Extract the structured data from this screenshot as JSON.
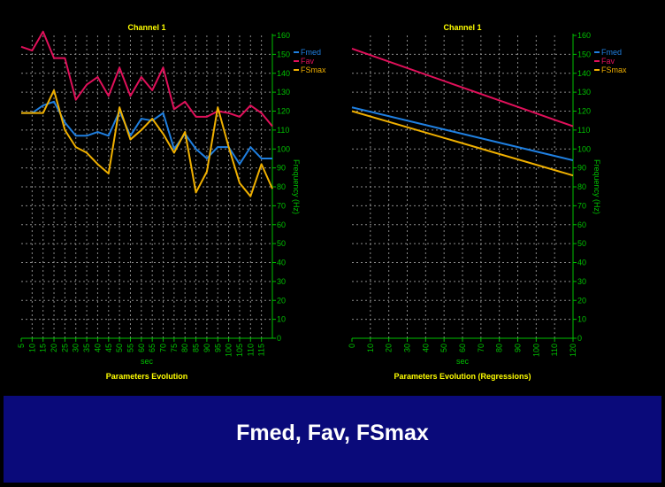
{
  "slide_title": "Fmed, Fav, FSmax",
  "colors": {
    "background": "#000000",
    "axis": "#00c000",
    "grid": "#8a8a8a",
    "title": "#ffff00",
    "banner": "#0a0a7a",
    "Fmed": "#1f7fe0",
    "Fav": "#e0105a",
    "FSmax": "#f0b000"
  },
  "chart_data": [
    {
      "type": "line",
      "title": "Channel 1",
      "subtitle": "Parameters Evolution",
      "xlabel": "sec",
      "ylabel": "Frequency (Hz)",
      "xlim": [
        5,
        120
      ],
      "ylim": [
        0,
        160
      ],
      "x_tick_labels": [
        "5",
        "10",
        "15",
        "20",
        "25",
        "30",
        "35",
        "40",
        "45",
        "50",
        "55",
        "60",
        "65",
        "70",
        "75",
        "80",
        "85",
        "90",
        "95",
        "100",
        "105",
        "110",
        "115"
      ],
      "y_tick_labels": [
        "0",
        "10",
        "20",
        "30",
        "40",
        "50",
        "60",
        "70",
        "80",
        "90",
        "100",
        "110",
        "120",
        "130",
        "140",
        "150",
        "160"
      ],
      "grid": true,
      "legend": "top-right",
      "x": [
        5,
        10,
        15,
        20,
        25,
        30,
        35,
        40,
        45,
        50,
        55,
        60,
        65,
        70,
        75,
        80,
        85,
        90,
        95,
        100,
        105,
        110,
        115,
        120
      ],
      "series": [
        {
          "name": "Fmed",
          "values": [
            119,
            119,
            123,
            125,
            114,
            107,
            107,
            109,
            107,
            120,
            107,
            116,
            115,
            119,
            100,
            108,
            100,
            95,
            101,
            101,
            92,
            101,
            95,
            95
          ]
        },
        {
          "name": "Fav",
          "values": [
            154,
            152,
            162,
            148,
            148,
            126,
            134,
            138,
            128,
            143,
            128,
            138,
            131,
            143,
            121,
            125,
            117,
            117,
            120,
            119,
            117,
            123,
            119,
            112
          ]
        },
        {
          "name": "FSmax",
          "values": [
            119,
            119,
            119,
            131,
            110,
            101,
            98,
            92,
            87,
            122,
            105,
            110,
            116,
            108,
            98,
            109,
            77,
            88,
            122,
            101,
            82,
            75,
            92,
            79
          ]
        }
      ]
    },
    {
      "type": "line",
      "title": "Channel 1",
      "subtitle": "Parameters Evolution (Regressions)",
      "xlabel": "sec",
      "ylabel": "Frequency (Hz)",
      "xlim": [
        0,
        120
      ],
      "ylim": [
        0,
        160
      ],
      "x_tick_labels": [
        "0",
        "10",
        "20",
        "30",
        "40",
        "50",
        "60",
        "70",
        "80",
        "90",
        "100",
        "110",
        "120"
      ],
      "y_tick_labels": [
        "0",
        "10",
        "20",
        "30",
        "40",
        "50",
        "60",
        "70",
        "80",
        "90",
        "100",
        "110",
        "120",
        "130",
        "140",
        "150",
        "160"
      ],
      "grid": true,
      "legend": "top-right",
      "x": [
        0,
        120
      ],
      "series": [
        {
          "name": "Fmed",
          "values": [
            122,
            94
          ]
        },
        {
          "name": "Fav",
          "values": [
            153,
            112
          ]
        },
        {
          "name": "FSmax",
          "values": [
            120,
            86
          ]
        }
      ]
    }
  ]
}
